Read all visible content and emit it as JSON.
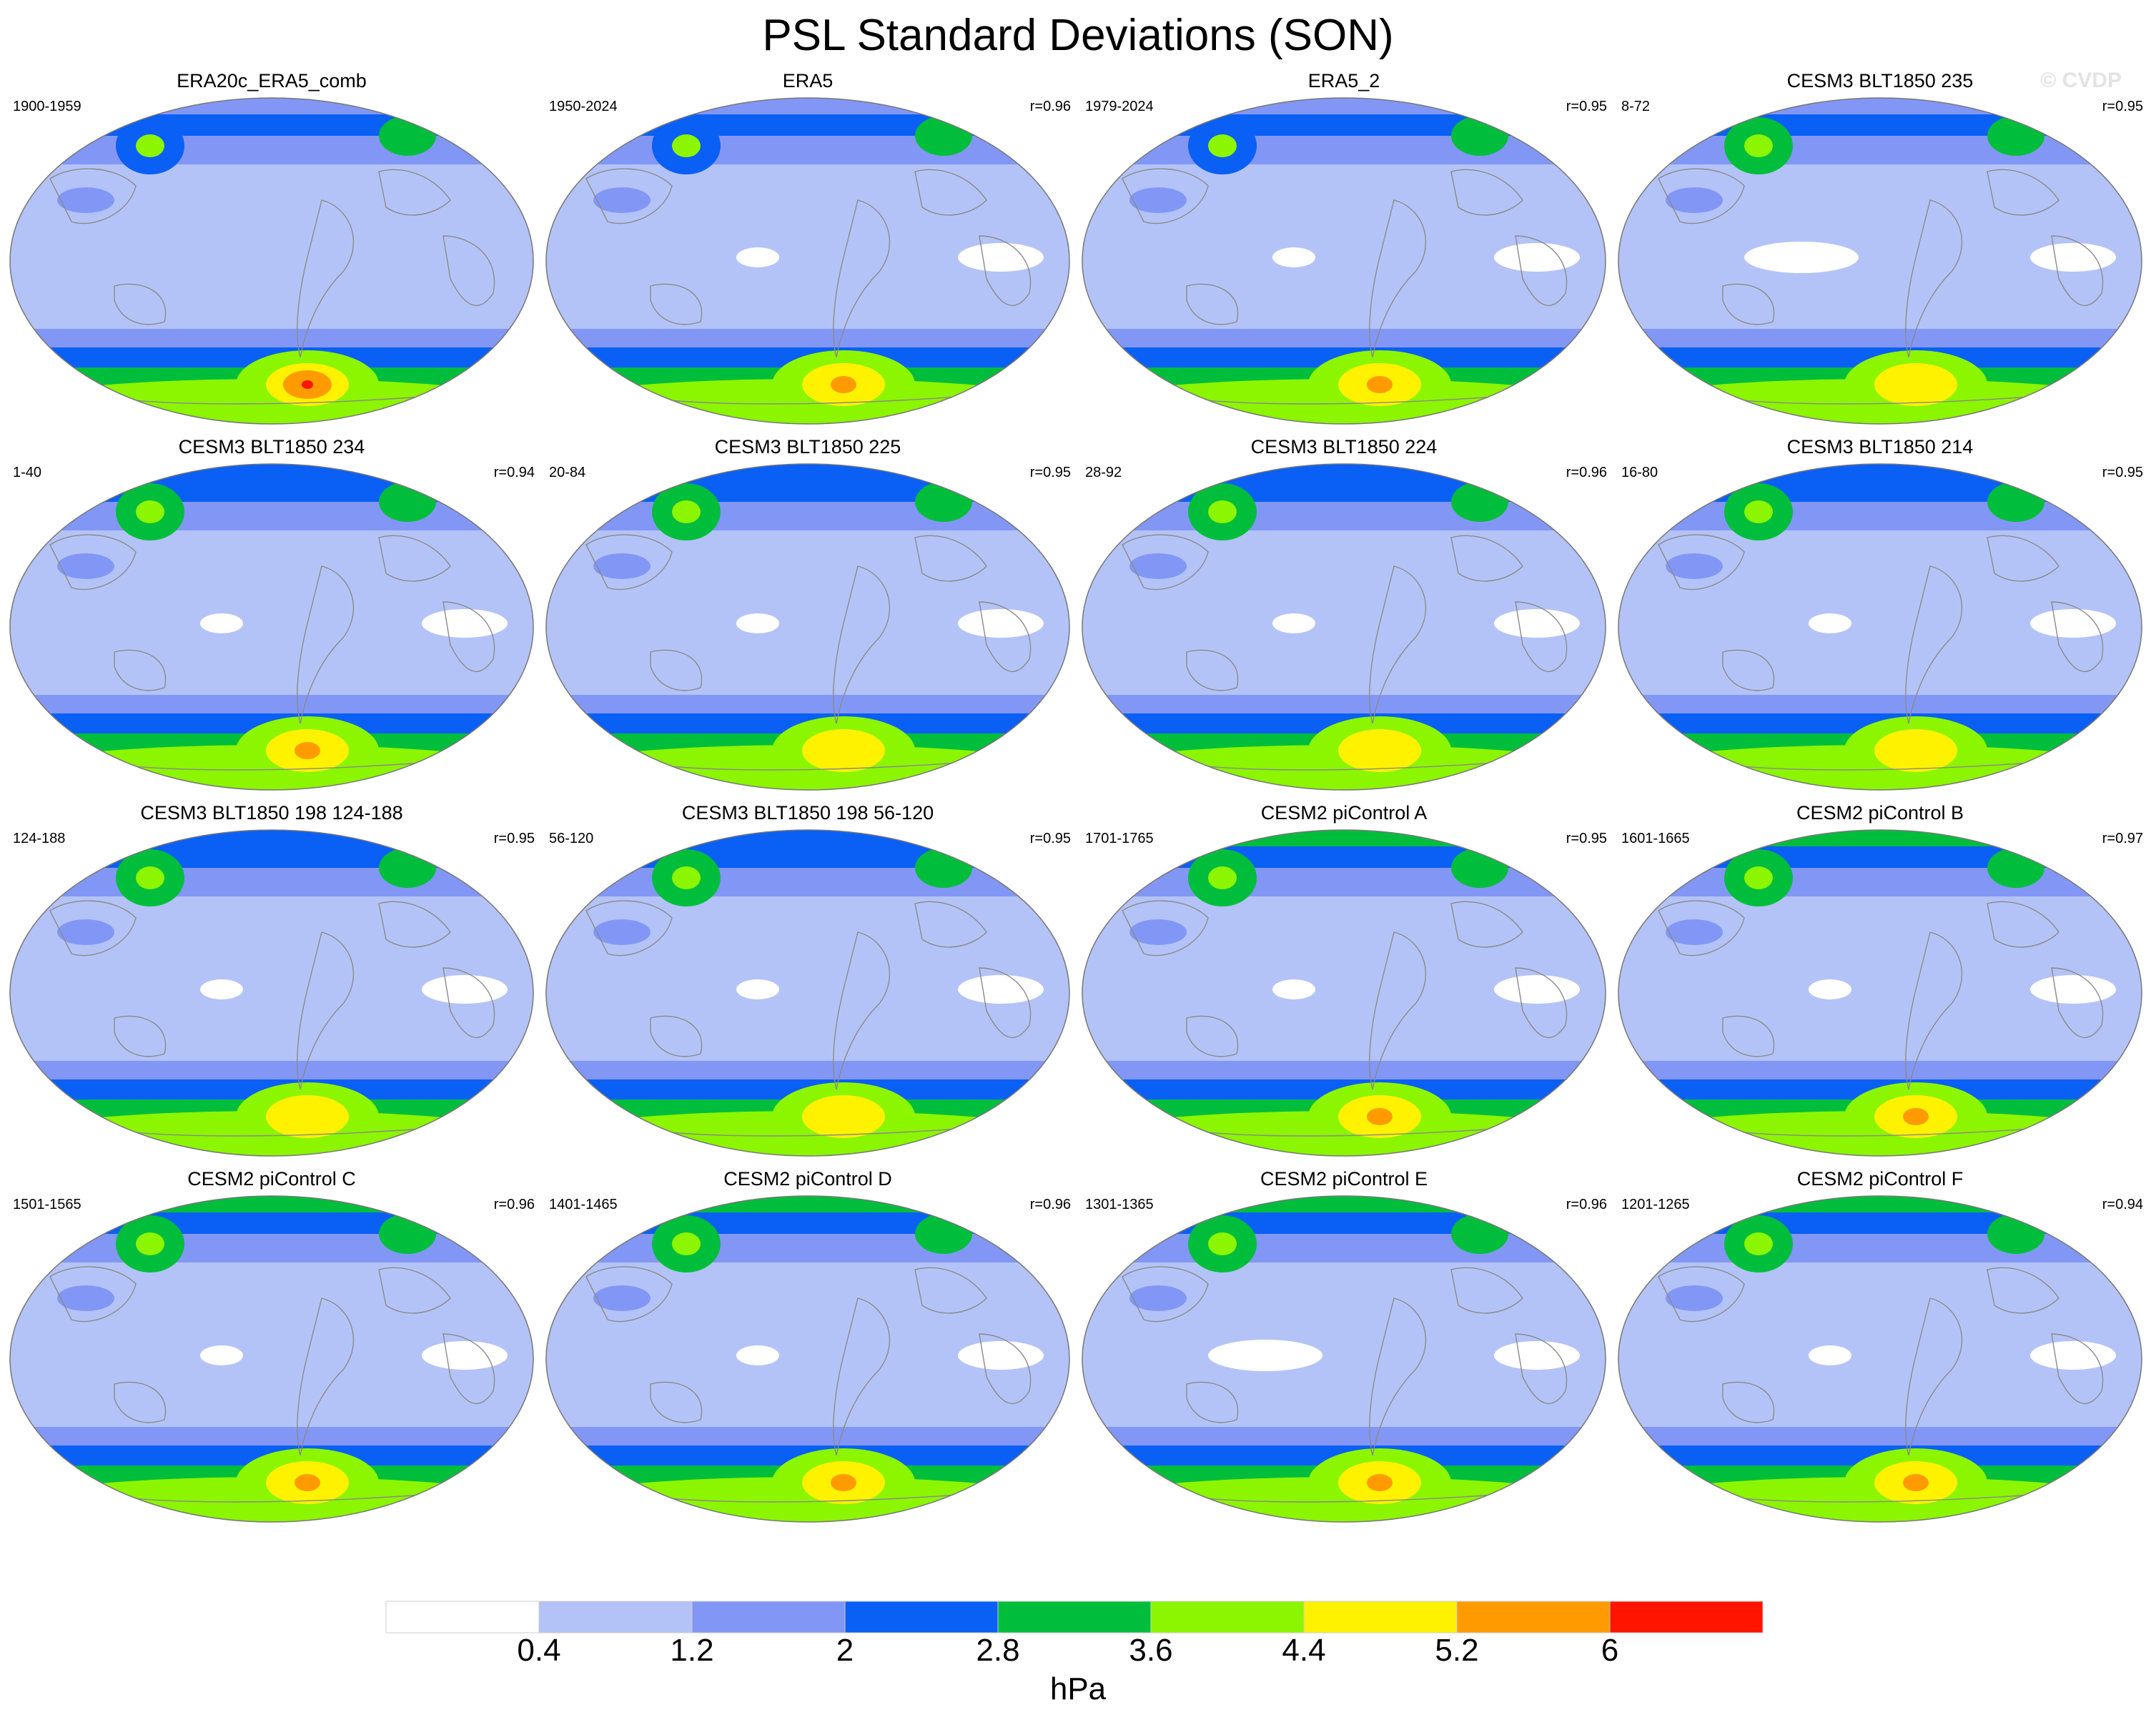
{
  "title": "PSL Standard Deviations (SON)",
  "watermark": "© CVDP",
  "colors": {
    "levels": [
      "#ffffff",
      "#b4c3f7",
      "#8297f5",
      "#0a5ff5",
      "#00be3c",
      "#8cf500",
      "#fff200",
      "#ff9b00",
      "#ff1400"
    ],
    "coast": "#8a8a8a",
    "outline": "#777777"
  },
  "colorbar": {
    "labels": [
      "0.4",
      "1.2",
      "2",
      "2.8",
      "3.6",
      "4.4",
      "5.2",
      "6"
    ],
    "units": "hPa"
  },
  "panels": [
    {
      "title": "ERA20c_ERA5_comb",
      "years": "1900-1959",
      "corr": "",
      "nh": 2,
      "npac": 3,
      "sh": 4,
      "core": 7,
      "white": 0
    },
    {
      "title": "ERA5",
      "years": "1950-2024",
      "corr": "r=0.96",
      "nh": 2,
      "npac": 3,
      "sh": 4,
      "core": 6,
      "white": 1
    },
    {
      "title": "ERA5_2",
      "years": "1979-2024",
      "corr": "r=0.95",
      "nh": 2,
      "npac": 3,
      "sh": 4,
      "core": 6,
      "white": 1
    },
    {
      "title": "CESM3 BLT1850 235",
      "years": "8-72",
      "corr": "r=0.95",
      "nh": 2,
      "npac": 4,
      "sh": 4,
      "core": 5,
      "white": 2
    },
    {
      "title": "CESM3 BLT1850 234",
      "years": "1-40",
      "corr": "r=0.94",
      "nh": 3,
      "npac": 4,
      "sh": 4,
      "core": 6,
      "white": 1
    },
    {
      "title": "CESM3 BLT1850 225",
      "years": "20-84",
      "corr": "r=0.95",
      "nh": 3,
      "npac": 4,
      "sh": 4,
      "core": 5,
      "white": 1
    },
    {
      "title": "CESM3 BLT1850 224",
      "years": "28-92",
      "corr": "r=0.96",
      "nh": 3,
      "npac": 4,
      "sh": 4,
      "core": 5,
      "white": 1
    },
    {
      "title": "CESM3 BLT1850 214",
      "years": "16-80",
      "corr": "r=0.95",
      "nh": 3,
      "npac": 4,
      "sh": 4,
      "core": 5,
      "white": 1
    },
    {
      "title": "CESM3 BLT1850 198 124-188",
      "years": "124-188",
      "corr": "r=0.95",
      "nh": 3,
      "npac": 4,
      "sh": 4,
      "core": 5,
      "white": 1
    },
    {
      "title": "CESM3 BLT1850 198 56-120",
      "years": "56-120",
      "corr": "r=0.95",
      "nh": 3,
      "npac": 4,
      "sh": 4,
      "core": 5,
      "white": 1
    },
    {
      "title": "CESM2 piControl A",
      "years": "1701-1765",
      "corr": "r=0.95",
      "nh": 4,
      "npac": 4,
      "sh": 4,
      "core": 6,
      "white": 1
    },
    {
      "title": "CESM2 piControl B",
      "years": "1601-1665",
      "corr": "r=0.97",
      "nh": 4,
      "npac": 4,
      "sh": 4,
      "core": 6,
      "white": 1
    },
    {
      "title": "CESM2 piControl C",
      "years": "1501-1565",
      "corr": "r=0.96",
      "nh": 4,
      "npac": 4,
      "sh": 4,
      "core": 6,
      "white": 1
    },
    {
      "title": "CESM2 piControl D",
      "years": "1401-1465",
      "corr": "r=0.96",
      "nh": 4,
      "npac": 4,
      "sh": 4,
      "core": 6,
      "white": 1
    },
    {
      "title": "CESM2 piControl E",
      "years": "1301-1365",
      "corr": "r=0.96",
      "nh": 4,
      "npac": 4,
      "sh": 4,
      "core": 6,
      "white": 2
    },
    {
      "title": "CESM2 piControl F",
      "years": "1201-1265",
      "corr": "r=0.94",
      "nh": 4,
      "npac": 4,
      "sh": 4,
      "core": 6,
      "white": 1
    }
  ]
}
